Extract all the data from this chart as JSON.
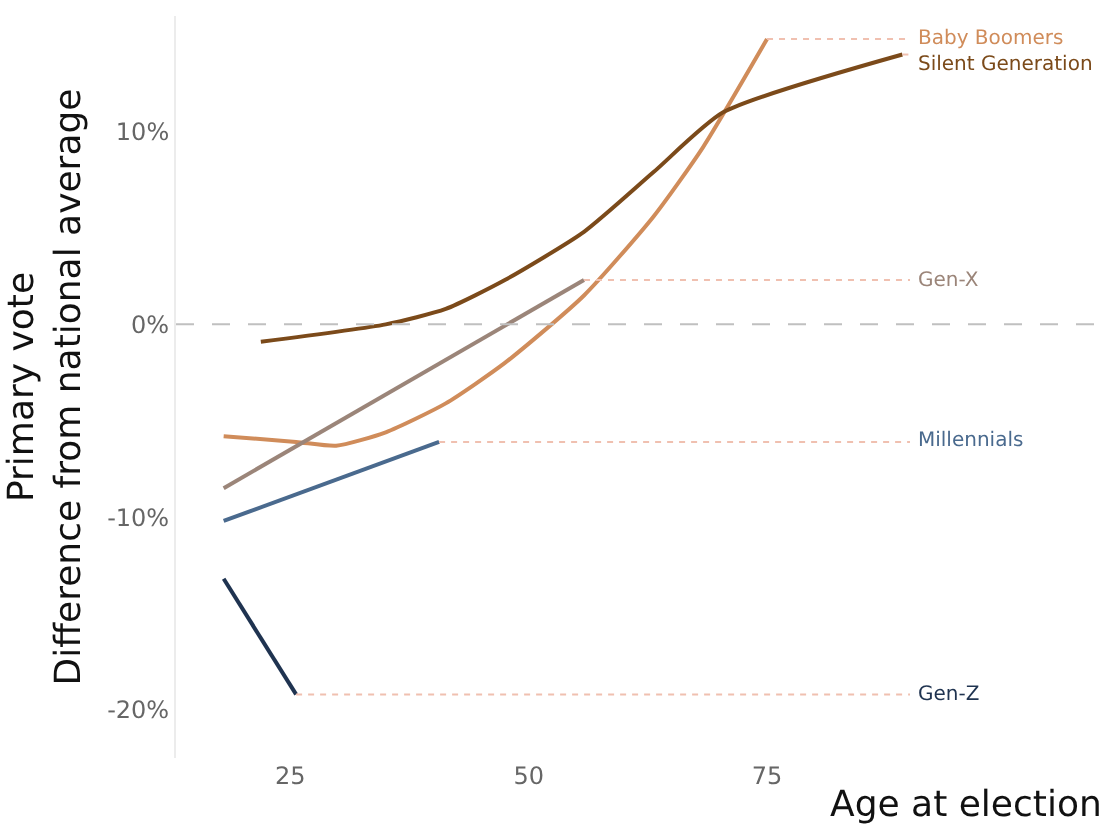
{
  "chart_data": {
    "type": "line",
    "xlabel": "Age at election",
    "ylabel": "Primary vote\nDifference from national average",
    "xlim": [
      13,
      90
    ],
    "ylim": [
      -22.5,
      16
    ],
    "xticks": [
      25,
      50,
      75
    ],
    "yticks": [
      {
        "value": -20,
        "label": "-20%"
      },
      {
        "value": -10,
        "label": "-10%"
      },
      {
        "value": 0,
        "label": "0%"
      },
      {
        "value": 10,
        "label": "10%"
      }
    ],
    "grid": false,
    "legend": false,
    "marker": "none",
    "line_style": "solid",
    "ref_lines": [
      {
        "axis": "y",
        "value": 0,
        "color": "#c0c0c0",
        "line_style": "dashed"
      }
    ],
    "series": [
      {
        "name": "Baby Boomers",
        "color": "#d08c5a",
        "x": [
          18,
          25.6,
          29.8,
          35,
          41.3,
          47.5,
          55.8,
          63.1,
          68.3,
          75
        ],
        "values": [
          -5.8,
          -6.1,
          -6.3,
          -5.6,
          -4.1,
          -2.0,
          1.5,
          5.6,
          9.2,
          14.8
        ]
      },
      {
        "name": "Silent Generation",
        "color": "#7b4a1a",
        "x": [
          21.9,
          35,
          41.3,
          47.5,
          55.8,
          63.1,
          70.4,
          89.2
        ],
        "values": [
          -0.9,
          0,
          0.8,
          2.3,
          4.8,
          7.9,
          11.0,
          14.0
        ]
      },
      {
        "name": "Gen-X",
        "color": "#9b8579",
        "x": [
          18,
          55.8
        ],
        "values": [
          -8.5,
          2.3
        ]
      },
      {
        "name": "Millennials",
        "color": "#4a6a8e",
        "x": [
          18,
          40.6
        ],
        "values": [
          -10.2,
          -6.1
        ]
      },
      {
        "name": "Gen-Z",
        "color": "#1f3350",
        "x": [
          18,
          25.6
        ],
        "values": [
          -13.2,
          -19.2
        ]
      }
    ]
  }
}
